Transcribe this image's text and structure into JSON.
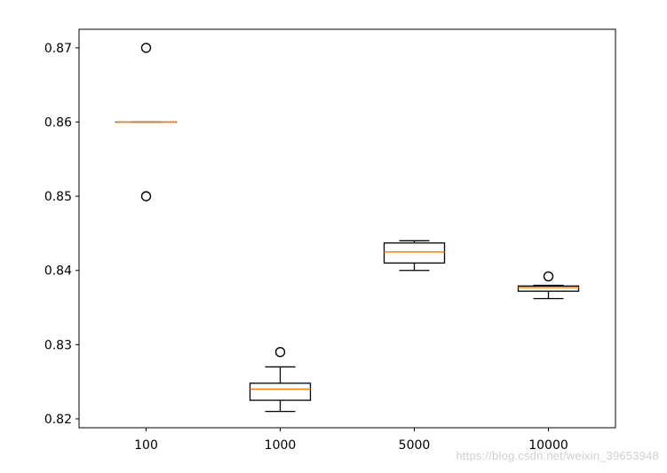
{
  "chart_data": {
    "type": "box",
    "categories": [
      "100",
      "1000",
      "5000",
      "10000"
    ],
    "ylim": [
      0.8188,
      0.8725
    ],
    "yticks": [
      {
        "value": 0.82,
        "label": "0.82"
      },
      {
        "value": 0.83,
        "label": "0.83"
      },
      {
        "value": 0.84,
        "label": "0.84"
      },
      {
        "value": 0.85,
        "label": "0.85"
      },
      {
        "value": 0.86,
        "label": "0.86"
      },
      {
        "value": 0.87,
        "label": "0.87"
      }
    ],
    "boxes": [
      {
        "category": "100",
        "whisker_low": 0.86,
        "q1": 0.86,
        "median": 0.86,
        "q3": 0.86,
        "whisker_high": 0.86,
        "outliers": [
          0.87,
          0.85
        ]
      },
      {
        "category": "1000",
        "whisker_low": 0.821,
        "q1": 0.8225,
        "median": 0.824,
        "q3": 0.8248,
        "whisker_high": 0.827,
        "outliers": [
          0.829
        ]
      },
      {
        "category": "5000",
        "whisker_low": 0.84,
        "q1": 0.841,
        "median": 0.8425,
        "q3": 0.8437,
        "whisker_high": 0.844,
        "outliers": []
      },
      {
        "category": "10000",
        "whisker_low": 0.8362,
        "q1": 0.8372,
        "median": 0.8377,
        "q3": 0.8379,
        "whisker_high": 0.838,
        "outliers": [
          0.8392
        ]
      }
    ],
    "colors": {
      "box": "#000000",
      "median": "#ff7f0e",
      "axes": "#000000",
      "background": "#ffffff"
    },
    "grid": false,
    "legend": "none"
  },
  "watermark": "https://blog.csdn.net/weixin_39653948"
}
